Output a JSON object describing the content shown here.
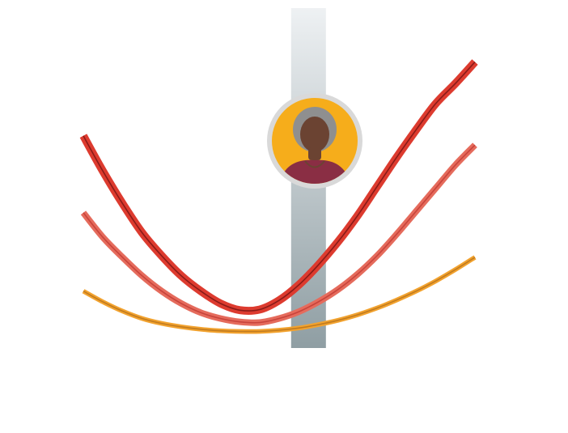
{
  "chart_data": {
    "type": "line",
    "title": "",
    "xlabel": "",
    "ylabel": "",
    "xlim": [
      0,
      100
    ],
    "ylim": [
      0,
      100
    ],
    "grid": false,
    "legend": "none",
    "marker": {
      "x": 57.5,
      "color_top": "#eef1f3",
      "color_bottom": "#8f9ea3",
      "avatar": {
        "icon": "person-avatar-icon",
        "ring_color": "#d9d9d9",
        "fill_color": "#f6ad1b",
        "shirt_color": "#8a2e44",
        "hair_color": "#8f8f8f",
        "skin_color": "#6b4332"
      }
    },
    "series": [
      {
        "color": "#dd3b2f",
        "core_color": "#7a1614",
        "band_width": 2.6,
        "x": [
          0,
          5,
          10,
          15,
          20,
          25,
          30,
          35,
          40,
          45,
          50,
          55,
          60,
          65,
          70,
          75,
          80,
          85,
          90,
          95,
          100
        ],
        "y": [
          69,
          57.5,
          47,
          37.5,
          30,
          23.5,
          18.5,
          14.5,
          12.3,
          12.5,
          15.5,
          20.5,
          27,
          34.5,
          43,
          52.5,
          62,
          71,
          79.5,
          86,
          93
        ]
      },
      {
        "color": "#e56b5c",
        "core_color": "#c33c35",
        "band_width": 2.1,
        "x": [
          0,
          5,
          10,
          15,
          20,
          25,
          30,
          35,
          40,
          45,
          50,
          55,
          60,
          65,
          70,
          75,
          80,
          85,
          90,
          95,
          100
        ],
        "y": [
          44,
          36,
          29.5,
          23.5,
          18.5,
          14.5,
          11.5,
          9.6,
          8.5,
          8.3,
          9.6,
          11.8,
          15,
          19,
          24,
          30,
          37,
          44.5,
          52,
          59.5,
          66
        ]
      },
      {
        "color": "#f2a22e",
        "core_color": "#b9741c",
        "band_width": 1.5,
        "x": [
          0,
          5,
          10,
          15,
          20,
          25,
          30,
          35,
          40,
          45,
          50,
          55,
          60,
          65,
          70,
          75,
          80,
          85,
          90,
          95,
          100
        ],
        "y": [
          18.5,
          15,
          12,
          9.6,
          8,
          6.9,
          6.1,
          5.6,
          5.4,
          5.4,
          5.8,
          6.5,
          7.6,
          9,
          10.8,
          13,
          15.6,
          18.5,
          21.8,
          25.5,
          29.5
        ]
      }
    ]
  }
}
